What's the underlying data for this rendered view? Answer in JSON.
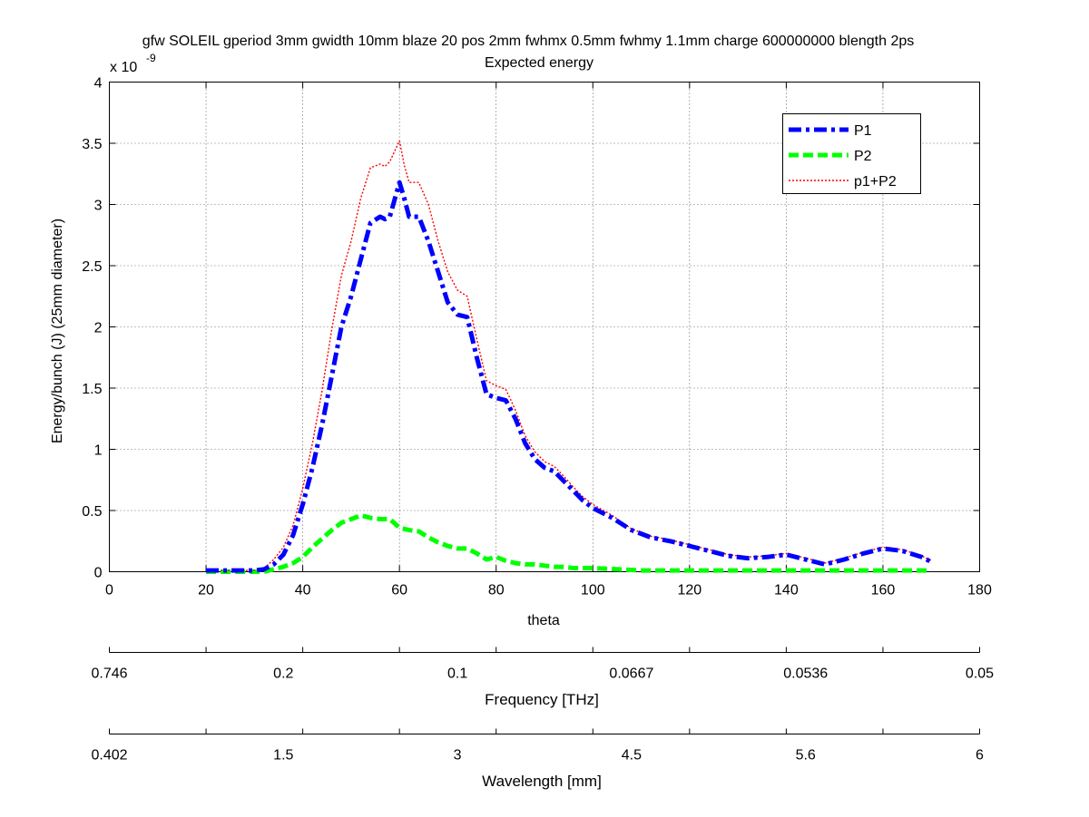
{
  "figure": {
    "title_line1": "gfw SOLEIL gperiod 3mm gwidth 10mm blaze 20 pos 2mm fwhmx 0.5mm fwhmy 1.1mm charge 600000000 blength 2ps",
    "title_line2": "Expected energy",
    "y_multiplier_base": "x 10",
    "y_multiplier_exp": "-9"
  },
  "chart_data": {
    "type": "line",
    "title": "gfw SOLEIL gperiod 3mm gwidth 10mm blaze 20 pos 2mm fwhmx 0.5mm fwhmy 1.1mm charge 600000000 blength 2ps",
    "subtitle": "Expected energy",
    "xlabel": "theta",
    "ylabel": "Energy/bunch (J) (25mm diameter)",
    "y_scale_factor": "1e-9",
    "xlim": [
      0,
      180
    ],
    "ylim": [
      0,
      4
    ],
    "xticks": [
      0,
      20,
      40,
      60,
      80,
      100,
      120,
      140,
      160,
      180
    ],
    "yticks": [
      0,
      0.5,
      1,
      1.5,
      2,
      2.5,
      3,
      3.5,
      4
    ],
    "xtick_labels": [
      "0",
      "20",
      "40",
      "60",
      "80",
      "100",
      "120",
      "140",
      "160",
      "180"
    ],
    "ytick_labels": [
      "0",
      "0.5",
      "1",
      "1.5",
      "2",
      "2.5",
      "3",
      "3.5",
      "4"
    ],
    "grid": true,
    "legend_position": "top-right",
    "series": [
      {
        "name": "P1",
        "color": "#0000ff",
        "style": "dash-dot",
        "x": [
          20,
          26,
          30,
          32,
          34,
          36,
          38,
          40,
          42,
          44,
          46,
          48,
          50,
          52,
          54,
          56,
          57,
          58,
          60,
          61,
          62,
          64,
          66,
          68,
          70,
          72,
          74,
          76,
          78,
          80,
          82,
          84,
          86,
          88,
          90,
          92,
          94,
          96,
          98,
          100,
          104,
          108,
          112,
          116,
          120,
          124,
          128,
          132,
          136,
          140,
          144,
          148,
          152,
          156,
          160,
          164,
          168,
          170
        ],
        "y": [
          0.01,
          0.01,
          0.01,
          0.02,
          0.06,
          0.14,
          0.3,
          0.55,
          0.85,
          1.2,
          1.6,
          2.0,
          2.25,
          2.55,
          2.85,
          2.9,
          2.88,
          2.9,
          3.18,
          3.05,
          2.9,
          2.9,
          2.7,
          2.45,
          2.2,
          2.1,
          2.08,
          1.75,
          1.45,
          1.42,
          1.4,
          1.25,
          1.05,
          0.92,
          0.85,
          0.82,
          0.74,
          0.66,
          0.58,
          0.52,
          0.44,
          0.34,
          0.28,
          0.25,
          0.21,
          0.17,
          0.13,
          0.11,
          0.12,
          0.14,
          0.1,
          0.06,
          0.1,
          0.15,
          0.19,
          0.17,
          0.12,
          0.08
        ]
      },
      {
        "name": "P2",
        "color": "#00ff00",
        "style": "dashed",
        "x": [
          20,
          30,
          32,
          34,
          36,
          38,
          40,
          42,
          44,
          46,
          48,
          50,
          52,
          54,
          56,
          58,
          60,
          62,
          64,
          66,
          68,
          70,
          72,
          74,
          76,
          78,
          80,
          82,
          84,
          86,
          88,
          90,
          92,
          94,
          96,
          100,
          105,
          110,
          120,
          130,
          140,
          150,
          160,
          170
        ],
        "y": [
          0.0,
          0.0,
          0.0,
          0.02,
          0.04,
          0.07,
          0.12,
          0.2,
          0.27,
          0.34,
          0.4,
          0.43,
          0.46,
          0.44,
          0.43,
          0.43,
          0.36,
          0.34,
          0.33,
          0.28,
          0.24,
          0.21,
          0.19,
          0.19,
          0.15,
          0.1,
          0.12,
          0.09,
          0.07,
          0.06,
          0.06,
          0.05,
          0.04,
          0.04,
          0.03,
          0.03,
          0.02,
          0.01,
          0.01,
          0.01,
          0.01,
          0.01,
          0.01,
          0.01
        ]
      },
      {
        "name": "p1+P2",
        "color": "#ff0000",
        "style": "dotted",
        "x": [
          20,
          26,
          30,
          32,
          34,
          36,
          38,
          40,
          42,
          44,
          46,
          48,
          50,
          52,
          54,
          56,
          57,
          58,
          60,
          61,
          62,
          64,
          66,
          68,
          70,
          72,
          74,
          76,
          78,
          80,
          82,
          84,
          86,
          88,
          90,
          92,
          94,
          96,
          98,
          100,
          104,
          108,
          112,
          116,
          120,
          124,
          128,
          132,
          136,
          140,
          144,
          148,
          152,
          156,
          160,
          164,
          168,
          170
        ],
        "y": [
          0.01,
          0.01,
          0.01,
          0.03,
          0.1,
          0.2,
          0.38,
          0.68,
          1.05,
          1.48,
          1.98,
          2.42,
          2.7,
          3.05,
          3.3,
          3.33,
          3.31,
          3.35,
          3.52,
          3.32,
          3.18,
          3.18,
          3.0,
          2.7,
          2.45,
          2.3,
          2.25,
          1.9,
          1.56,
          1.52,
          1.49,
          1.32,
          1.11,
          0.98,
          0.9,
          0.86,
          0.78,
          0.69,
          0.61,
          0.55,
          0.46,
          0.35,
          0.29,
          0.26,
          0.22,
          0.18,
          0.14,
          0.12,
          0.13,
          0.15,
          0.11,
          0.07,
          0.11,
          0.16,
          0.2,
          0.18,
          0.13,
          0.09
        ]
      }
    ],
    "secondary_axes": [
      {
        "label": "Frequency [THz]",
        "tick_labels": [
          "0.746",
          "0.2",
          "0.1",
          "0.0667",
          "0.0536",
          "0.05"
        ],
        "tick_theta": [
          0,
          36,
          72,
          108,
          144,
          180
        ]
      },
      {
        "label": "Wavelength [mm]",
        "tick_labels": [
          "0.402",
          "1.5",
          "3",
          "4.5",
          "5.6",
          "6"
        ],
        "tick_theta": [
          0,
          36,
          72,
          108,
          144,
          180
        ]
      }
    ]
  }
}
